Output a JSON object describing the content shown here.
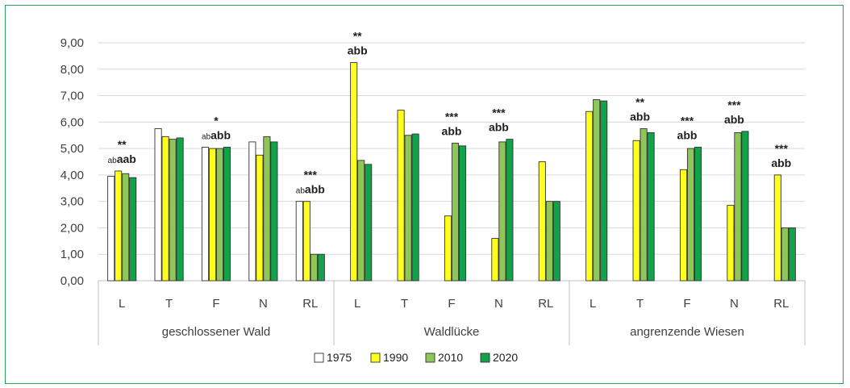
{
  "chart_data": {
    "type": "bar",
    "ylim": [
      0,
      9
    ],
    "yticks": [
      "0,00",
      "1,00",
      "2,00",
      "3,00",
      "4,00",
      "5,00",
      "6,00",
      "7,00",
      "8,00",
      "9,00"
    ],
    "grid": true,
    "legend_position": "bottom",
    "groups": [
      {
        "label": "geschlossener Wald",
        "categories": [
          "L",
          "T",
          "F",
          "N",
          "RL"
        ]
      },
      {
        "label": "Waldlücke",
        "categories": [
          "L",
          "T",
          "F",
          "N",
          "RL"
        ]
      },
      {
        "label": "angrenzende Wiesen",
        "categories": [
          "L",
          "T",
          "F",
          "N",
          "RL"
        ]
      }
    ],
    "series": [
      {
        "name": "1975",
        "color": "#ffffff",
        "values": [
          3.95,
          5.75,
          5.05,
          5.25,
          3.0,
          null,
          null,
          null,
          null,
          null,
          null,
          null,
          null,
          null,
          null
        ]
      },
      {
        "name": "1990",
        "color": "#ffff1e",
        "values": [
          4.15,
          5.45,
          5.0,
          4.75,
          3.0,
          8.25,
          6.45,
          2.45,
          1.6,
          4.5,
          6.4,
          5.3,
          4.2,
          2.85,
          4.0
        ]
      },
      {
        "name": "2010",
        "color": "#8fc65a",
        "values": [
          4.05,
          5.35,
          5.0,
          5.45,
          1.0,
          4.55,
          5.5,
          5.2,
          5.25,
          3.0,
          6.85,
          5.75,
          5.0,
          5.6,
          2.0
        ]
      },
      {
        "name": "2020",
        "color": "#12a34a",
        "values": [
          3.9,
          5.4,
          5.05,
          5.25,
          1.0,
          4.4,
          5.55,
          5.1,
          5.35,
          3.0,
          6.8,
          5.6,
          5.05,
          5.65,
          2.0
        ]
      }
    ],
    "annotations": [
      {
        "index": 0,
        "stars": "**",
        "letters": [
          {
            "t": "ab",
            "small": true
          },
          {
            "t": "aab",
            "small": false
          }
        ]
      },
      {
        "index": 2,
        "stars": "*",
        "letters": [
          {
            "t": "ab",
            "small": true
          },
          {
            "t": "abb",
            "small": false
          }
        ]
      },
      {
        "index": 4,
        "stars": "***",
        "letters": [
          {
            "t": "ab",
            "small": true
          },
          {
            "t": "abb",
            "small": false
          }
        ]
      },
      {
        "index": 5,
        "stars": "**",
        "letters": [
          {
            "t": "abb",
            "small": false
          }
        ]
      },
      {
        "index": 7,
        "stars": "***",
        "letters": [
          {
            "t": "abb",
            "small": false
          }
        ]
      },
      {
        "index": 8,
        "stars": "***",
        "letters": [
          {
            "t": "abb",
            "small": false
          }
        ]
      },
      {
        "index": 11,
        "stars": "**",
        "letters": [
          {
            "t": "abb",
            "small": false
          }
        ]
      },
      {
        "index": 12,
        "stars": "***",
        "letters": [
          {
            "t": "abb",
            "small": false
          }
        ]
      },
      {
        "index": 13,
        "stars": "***",
        "letters": [
          {
            "t": "abb",
            "small": false
          }
        ]
      },
      {
        "index": 14,
        "stars": "***",
        "letters": [
          {
            "t": "abb",
            "small": false
          }
        ]
      }
    ]
  }
}
